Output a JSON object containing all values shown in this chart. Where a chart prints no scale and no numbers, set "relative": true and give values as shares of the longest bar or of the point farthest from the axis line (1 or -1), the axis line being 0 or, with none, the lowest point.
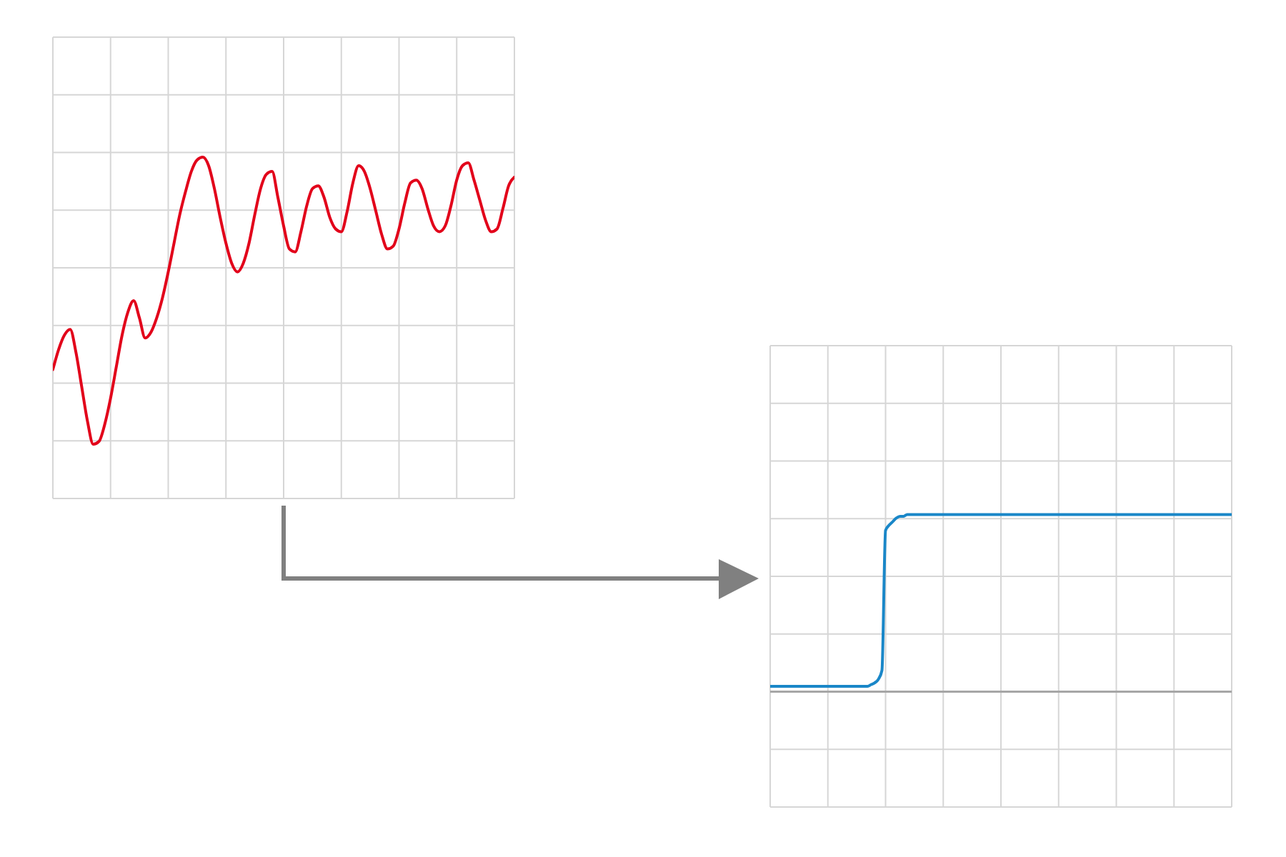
{
  "chart_data": [
    {
      "type": "line",
      "relative": true,
      "grid": true,
      "color": "#e2001a",
      "categories": [
        null,
        null,
        null,
        null,
        null,
        null,
        null,
        null,
        null,
        null,
        null,
        null,
        null,
        null,
        null,
        null,
        null,
        null,
        null,
        null,
        null,
        null,
        null,
        null,
        null,
        null,
        null,
        null,
        null,
        null,
        null,
        null,
        null,
        null,
        null,
        null,
        null,
        null,
        null,
        null,
        null,
        null,
        null,
        null,
        null,
        null,
        null,
        null,
        null,
        null,
        null,
        null,
        null,
        null,
        null,
        null,
        null,
        null,
        null,
        null,
        null,
        null,
        null,
        null,
        null,
        null,
        null,
        null,
        null,
        null,
        null,
        null,
        null,
        null,
        null,
        null,
        null,
        null,
        null,
        null,
        null
      ],
      "values": [
        0.26,
        0.33,
        0.38,
        0.4,
        0.32,
        0.2,
        0.08,
        0,
        0.01,
        0.07,
        0.16,
        0.27,
        0.38,
        0.46,
        0.5,
        0.44,
        0.37,
        0.39,
        0.44,
        0.51,
        0.6,
        0.7,
        0.8,
        0.88,
        0.95,
        0.99,
        1,
        0.97,
        0.89,
        0.79,
        0.7,
        0.63,
        0.6,
        0.63,
        0.7,
        0.8,
        0.89,
        0.94,
        0.95,
        0.86,
        0.76,
        0.68,
        0.67,
        0.74,
        0.83,
        0.89,
        0.9,
        0.86,
        0.79,
        0.75,
        0.74,
        0.81,
        0.91,
        0.97,
        0.95,
        0.89,
        0.81,
        0.73,
        0.68,
        0.69,
        0.75,
        0.84,
        0.91,
        0.92,
        0.89,
        0.82,
        0.76,
        0.74,
        0.76,
        0.83,
        0.92,
        0.97,
        0.98,
        0.92,
        0.85,
        0.78,
        0.74,
        0.75,
        0.82,
        0.9,
        0.93
      ]
    },
    {
      "type": "line",
      "relative": true,
      "grid": true,
      "color": "#1a87c8",
      "ref_lines": [
        {
          "axis": "y",
          "value": 0,
          "color": "#a6a6a6"
        }
      ],
      "categories": [
        null,
        null,
        null,
        null,
        null,
        null,
        null,
        null,
        null,
        null,
        null,
        null,
        null,
        null,
        null,
        null,
        null,
        null,
        null,
        null,
        null,
        null,
        null,
        null,
        null,
        null,
        null,
        null,
        null,
        null,
        null,
        null,
        null,
        null,
        null,
        null,
        null,
        null,
        null,
        null,
        null,
        null,
        null,
        null,
        null,
        null,
        null,
        null,
        null,
        null,
        null,
        null,
        null,
        null,
        null,
        null,
        null,
        null,
        null,
        null,
        null,
        null,
        null,
        null,
        null,
        null,
        null,
        null,
        null,
        null,
        null,
        null,
        null,
        null,
        null,
        null,
        null,
        null,
        null,
        null,
        null,
        null,
        null,
        null,
        null,
        null,
        null,
        null,
        null,
        null,
        null,
        null,
        null,
        null,
        null,
        null,
        null,
        null,
        null,
        null,
        null,
        null,
        null,
        null,
        null,
        null,
        null,
        null,
        null,
        null,
        null,
        null,
        null,
        null,
        null,
        null,
        null,
        null,
        null,
        null,
        null,
        null,
        null,
        null,
        null,
        null,
        null,
        null,
        null
      ],
      "values": [
        0.03,
        0.03,
        0.03,
        0.03,
        0.03,
        0.03,
        0.03,
        0.03,
        0.03,
        0.03,
        0.03,
        0.03,
        0.03,
        0.03,
        0.03,
        0.03,
        0.03,
        0.03,
        0.03,
        0.03,
        0.03,
        0.03,
        0.03,
        0.03,
        0.03,
        0.03,
        0.03,
        0.03,
        0.04,
        0.05,
        0.07,
        0.12,
        0.91,
        0.94,
        0.96,
        0.98,
        0.99,
        0.99,
        1,
        1,
        1,
        1,
        1,
        1,
        1,
        1,
        1,
        1,
        1,
        1,
        1,
        1,
        1,
        1,
        1,
        1,
        1,
        1,
        1,
        1,
        1,
        1,
        1,
        1,
        1,
        1,
        1,
        1,
        1,
        1,
        1,
        1,
        1,
        1,
        1,
        1,
        1,
        1,
        1,
        1,
        1,
        1,
        1,
        1,
        1,
        1,
        1,
        1,
        1,
        1,
        1,
        1,
        1,
        1,
        1,
        1,
        1,
        1,
        1,
        1,
        1,
        1,
        1,
        1,
        1,
        1,
        1,
        1,
        1,
        1,
        1,
        1,
        1,
        1,
        1,
        1,
        1,
        1,
        1,
        1,
        1,
        1,
        1,
        1,
        1,
        1,
        1,
        1,
        1
      ]
    }
  ]
}
